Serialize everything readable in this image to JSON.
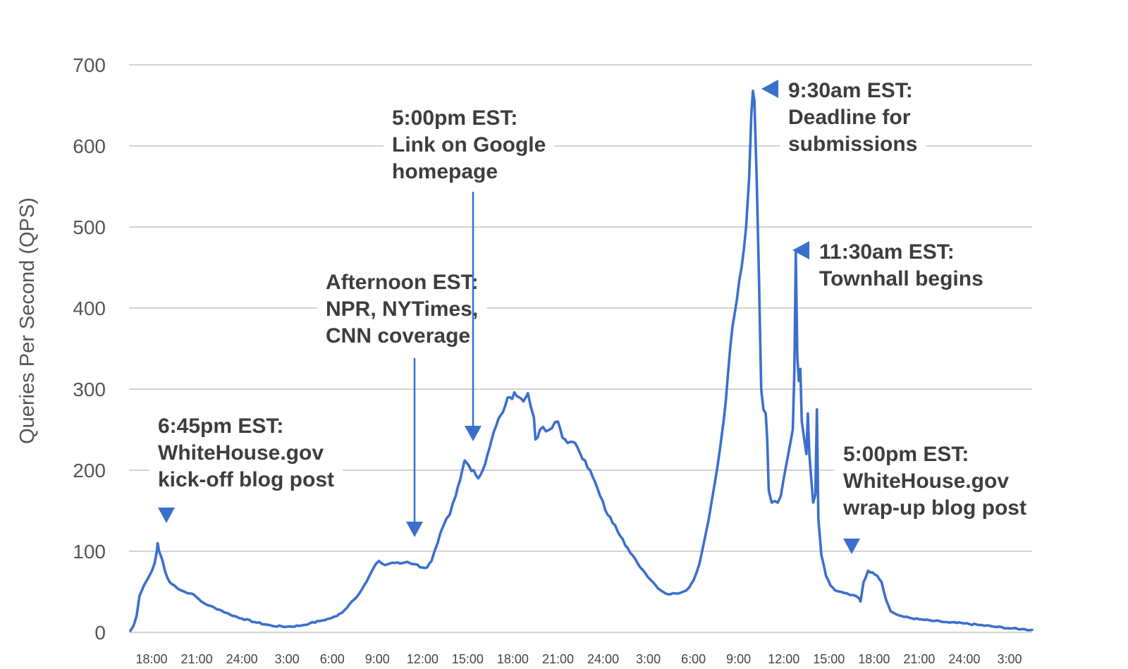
{
  "chart_data": {
    "type": "line",
    "title": "",
    "xlabel": "",
    "ylabel": "Queries Per Second (QPS)",
    "ylim": [
      0,
      700
    ],
    "yticks": [
      0,
      100,
      200,
      300,
      400,
      500,
      600,
      700
    ],
    "grid": true,
    "legend": "none",
    "line_color": "#3b6fcc",
    "x_unit": "hours from 18:00 on day 1",
    "xlim": [
      -1.5,
      58.5
    ],
    "x_tick_labels": [
      {
        "x": 0,
        "label": "18:00"
      },
      {
        "x": 3,
        "label": "21:00"
      },
      {
        "x": 6,
        "label": "24:00"
      },
      {
        "x": 9,
        "label": "3:00"
      },
      {
        "x": 12,
        "label": "6:00"
      },
      {
        "x": 15,
        "label": "9:00"
      },
      {
        "x": 18,
        "label": "12:00"
      },
      {
        "x": 21,
        "label": "15:00"
      },
      {
        "x": 24,
        "label": "18:00"
      },
      {
        "x": 27,
        "label": "21:00"
      },
      {
        "x": 30,
        "label": "24:00"
      },
      {
        "x": 33,
        "label": "3:00"
      },
      {
        "x": 36,
        "label": "6:00"
      },
      {
        "x": 39,
        "label": "9:00"
      },
      {
        "x": 42,
        "label": "12:00"
      },
      {
        "x": 45,
        "label": "15:00"
      },
      {
        "x": 48,
        "label": "18:00"
      },
      {
        "x": 51,
        "label": "21:00"
      },
      {
        "x": 54,
        "label": "24:00"
      },
      {
        "x": 57,
        "label": "3:00"
      }
    ],
    "series": [
      {
        "name": "",
        "points": [
          [
            -1.4,
            2
          ],
          [
            -1.2,
            8
          ],
          [
            -1.0,
            20
          ],
          [
            -0.8,
            45
          ],
          [
            -0.5,
            58
          ],
          [
            -0.2,
            68
          ],
          [
            0.0,
            75
          ],
          [
            0.2,
            85
          ],
          [
            0.35,
            100
          ],
          [
            0.4,
            110
          ],
          [
            0.5,
            100
          ],
          [
            0.7,
            90
          ],
          [
            0.9,
            75
          ],
          [
            1.2,
            62
          ],
          [
            1.5,
            58
          ],
          [
            1.8,
            53
          ],
          [
            2.2,
            50
          ],
          [
            2.6,
            48
          ],
          [
            2.9,
            45
          ],
          [
            3.3,
            38
          ],
          [
            3.8,
            33
          ],
          [
            4.5,
            28
          ],
          [
            5.2,
            22
          ],
          [
            6.0,
            17
          ],
          [
            7.0,
            12
          ],
          [
            8.0,
            8
          ],
          [
            9.0,
            7
          ],
          [
            9.8,
            8
          ],
          [
            10.5,
            11
          ],
          [
            11.2,
            14
          ],
          [
            11.8,
            17
          ],
          [
            12.3,
            20
          ],
          [
            12.8,
            27
          ],
          [
            13.3,
            38
          ],
          [
            13.8,
            48
          ],
          [
            14.3,
            63
          ],
          [
            14.7,
            78
          ],
          [
            15.1,
            88
          ],
          [
            15.5,
            83
          ],
          [
            16.0,
            86
          ],
          [
            16.5,
            85
          ],
          [
            17.0,
            87
          ],
          [
            17.5,
            84
          ],
          [
            18.0,
            80
          ],
          [
            18.3,
            80
          ],
          [
            18.6,
            88
          ],
          [
            19.0,
            110
          ],
          [
            19.4,
            132
          ],
          [
            19.8,
            145
          ],
          [
            20.2,
            168
          ],
          [
            20.5,
            188
          ],
          [
            20.8,
            212
          ],
          [
            21.1,
            205
          ],
          [
            21.4,
            200
          ],
          [
            21.7,
            190
          ],
          [
            22.0,
            200
          ],
          [
            22.3,
            218
          ],
          [
            22.6,
            238
          ],
          [
            22.9,
            255
          ],
          [
            23.2,
            268
          ],
          [
            23.5,
            280
          ],
          [
            23.8,
            290
          ],
          [
            24.1,
            296
          ],
          [
            24.4,
            290
          ],
          [
            24.7,
            285
          ],
          [
            25.0,
            295
          ],
          [
            25.2,
            278
          ],
          [
            25.4,
            265
          ],
          [
            25.5,
            238
          ],
          [
            25.8,
            250
          ],
          [
            26.2,
            248
          ],
          [
            26.6,
            252
          ],
          [
            27.0,
            260
          ],
          [
            27.3,
            240
          ],
          [
            27.8,
            235
          ],
          [
            28.3,
            228
          ],
          [
            28.8,
            212
          ],
          [
            29.3,
            192
          ],
          [
            29.8,
            168
          ],
          [
            30.3,
            145
          ],
          [
            30.8,
            132
          ],
          [
            31.3,
            115
          ],
          [
            31.8,
            98
          ],
          [
            32.3,
            85
          ],
          [
            32.8,
            73
          ],
          [
            33.3,
            62
          ],
          [
            33.8,
            52
          ],
          [
            34.3,
            47
          ],
          [
            34.8,
            48
          ],
          [
            35.3,
            50
          ],
          [
            35.7,
            55
          ],
          [
            36.0,
            64
          ],
          [
            36.4,
            85
          ],
          [
            36.8,
            120
          ],
          [
            37.2,
            160
          ],
          [
            37.6,
            205
          ],
          [
            38.0,
            260
          ],
          [
            38.3,
            320
          ],
          [
            38.6,
            378
          ],
          [
            38.9,
            412
          ],
          [
            39.2,
            450
          ],
          [
            39.5,
            500
          ],
          [
            39.7,
            560
          ],
          [
            39.85,
            640
          ],
          [
            39.95,
            668
          ],
          [
            40.05,
            655
          ],
          [
            40.2,
            560
          ],
          [
            40.35,
            440
          ],
          [
            40.5,
            300
          ],
          [
            40.65,
            275
          ],
          [
            40.8,
            270
          ],
          [
            40.9,
            240
          ],
          [
            41.0,
            175
          ],
          [
            41.2,
            160
          ],
          [
            41.4,
            162
          ],
          [
            41.6,
            160
          ],
          [
            41.8,
            168
          ],
          [
            42.0,
            190
          ],
          [
            42.2,
            210
          ],
          [
            42.4,
            230
          ],
          [
            42.6,
            250
          ],
          [
            42.7,
            320
          ],
          [
            42.8,
            468
          ],
          [
            42.9,
            340
          ],
          [
            43.0,
            310
          ],
          [
            43.1,
            325
          ],
          [
            43.2,
            260
          ],
          [
            43.35,
            240
          ],
          [
            43.5,
            220
          ],
          [
            43.6,
            270
          ],
          [
            43.7,
            220
          ],
          [
            43.8,
            195
          ],
          [
            43.95,
            160
          ],
          [
            44.1,
            170
          ],
          [
            44.2,
            275
          ],
          [
            44.3,
            140
          ],
          [
            44.5,
            95
          ],
          [
            44.8,
            70
          ],
          [
            45.1,
            58
          ],
          [
            45.4,
            52
          ],
          [
            45.8,
            50
          ],
          [
            46.2,
            48
          ],
          [
            46.6,
            46
          ],
          [
            47.0,
            42
          ],
          [
            47.1,
            38
          ],
          [
            47.3,
            62
          ],
          [
            47.6,
            76
          ],
          [
            47.9,
            74
          ],
          [
            48.2,
            70
          ],
          [
            48.5,
            62
          ],
          [
            48.8,
            40
          ],
          [
            49.1,
            26
          ],
          [
            49.5,
            22
          ],
          [
            50.0,
            19
          ],
          [
            51.0,
            16
          ],
          [
            52.0,
            14
          ],
          [
            53.0,
            12
          ],
          [
            54.0,
            11
          ],
          [
            55.0,
            9
          ],
          [
            56.0,
            7
          ],
          [
            57.0,
            5
          ],
          [
            57.8,
            4
          ],
          [
            58.5,
            3
          ]
        ]
      }
    ],
    "annotations": [
      {
        "lines": [
          "6:45pm EST:",
          "WhiteHouse.gov",
          "kick-off blog post"
        ],
        "target": [
          0.35,
          100
        ]
      },
      {
        "lines": [
          "Afternoon EST:",
          "NPR, NYTimes,",
          "CNN coverage"
        ],
        "target": [
          18.0,
          100
        ]
      },
      {
        "lines": [
          "5:00pm EST:",
          "Link on Google",
          "homepage"
        ],
        "target": [
          21.0,
          200
        ]
      },
      {
        "lines": [
          "9:30am EST:",
          "Deadline for",
          "submissions"
        ],
        "target": [
          40.1,
          668
        ]
      },
      {
        "lines": [
          "11:30am EST:",
          "Townhall begins"
        ],
        "target": [
          42.9,
          468
        ]
      },
      {
        "lines": [
          "5:00pm EST:",
          "WhiteHouse.gov",
          "wrap-up blog post"
        ],
        "target": [
          47.6,
          76
        ]
      }
    ]
  }
}
